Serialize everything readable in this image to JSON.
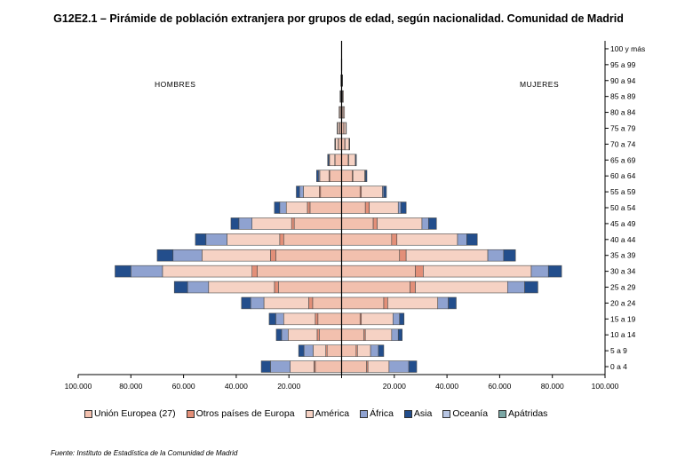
{
  "title": "G12E2.1 – Pirámide de población extranjera por grupos de edad, según nacionalidad. Comunidad de Madrid",
  "labels": {
    "men": "HOMBRES",
    "women": "MUJERES"
  },
  "source": "Fuente: Instituto de Estadística de la Comunidad de Madrid",
  "colors": {
    "Unión Europea (27)": "#f2c0ae",
    "Otros países de Europa": "#e38f78",
    "América": "#f6d2c4",
    "África": "#8fa2d0",
    "Asia": "#234e8c",
    "Oceanía": "#b7c5e3",
    "Apátridas": "#7ba7a5"
  },
  "legend": [
    "Unión Europea (27)",
    "Otros países de Europa",
    "América",
    "África",
    "Asia",
    "Oceanía",
    "Apátridas"
  ],
  "chart_data": {
    "type": "bar",
    "orientation": "horizontal-population-pyramid",
    "categories": [
      "0 a 4",
      "5 a 9",
      "10 a 14",
      "15 a 19",
      "20 a 24",
      "25 a 29",
      "30 a 34",
      "35 a 39",
      "40 a 44",
      "45 a 49",
      "50 a 54",
      "55 a 59",
      "60 a 64",
      "65 a 69",
      "70 a 74",
      "75 a 79",
      "80 a 84",
      "85 a 89",
      "90 a 94",
      "95 a 99",
      "100 y más"
    ],
    "xlim": [
      -100000,
      100000
    ],
    "x_ticks": [
      -100000,
      -80000,
      -60000,
      -40000,
      -20000,
      0,
      20000,
      40000,
      60000,
      80000,
      100000
    ],
    "x_tick_labels": [
      "100.000",
      "80.000",
      "60.000",
      "40.000",
      "20.000",
      "",
      "20.000",
      "40.000",
      "60.000",
      "80.000",
      "100.000"
    ],
    "men": {
      "series": [
        {
          "name": "Unión Europea (27)",
          "values": [
            10000,
            5500,
            8500,
            9000,
            11000,
            24000,
            32000,
            25000,
            22000,
            18000,
            12000,
            8000,
            4500,
            2500,
            1200,
            700,
            500,
            300,
            200,
            100,
            50
          ]
        },
        {
          "name": "Otros países de Europa",
          "values": [
            500,
            500,
            800,
            1000,
            1500,
            1500,
            2000,
            2000,
            1500,
            1000,
            1000,
            500,
            300,
            100,
            100,
            100,
            100,
            100,
            0,
            0,
            0
          ]
        },
        {
          "name": "América",
          "values": [
            9000,
            4800,
            11000,
            12000,
            17000,
            25000,
            34000,
            26000,
            20000,
            15000,
            8000,
            6000,
            3500,
            2000,
            1000,
            700,
            400,
            200,
            100,
            0,
            0
          ]
        },
        {
          "name": "África",
          "values": [
            7500,
            3500,
            2500,
            3000,
            5000,
            8000,
            12000,
            11000,
            8000,
            5000,
            2500,
            1500,
            500,
            300,
            100,
            100,
            0,
            0,
            0,
            0,
            0
          ]
        },
        {
          "name": "Asia",
          "values": [
            3500,
            2000,
            2000,
            2500,
            3500,
            5000,
            6000,
            6000,
            4000,
            3000,
            2000,
            1200,
            700,
            400,
            200,
            100,
            0,
            0,
            0,
            0,
            0
          ]
        },
        {
          "name": "Oceanía",
          "values": [
            0,
            0,
            0,
            0,
            0,
            0,
            0,
            0,
            0,
            0,
            0,
            0,
            0,
            0,
            0,
            0,
            0,
            0,
            0,
            0,
            0
          ]
        },
        {
          "name": "Apátridas",
          "values": [
            0,
            0,
            0,
            0,
            0,
            0,
            0,
            0,
            0,
            0,
            0,
            0,
            0,
            0,
            0,
            0,
            0,
            0,
            0,
            0,
            0
          ]
        }
      ]
    },
    "women": {
      "series": [
        {
          "name": "Unión Europea (27)",
          "values": [
            9500,
            5500,
            8500,
            7000,
            16000,
            26000,
            28000,
            22000,
            19000,
            12000,
            9000,
            7000,
            4000,
            2500,
            1200,
            800,
            500,
            300,
            200,
            100,
            50
          ]
        },
        {
          "name": "Otros países de Europa",
          "values": [
            500,
            500,
            500,
            500,
            1500,
            2000,
            3000,
            2500,
            2000,
            1500,
            1500,
            500,
            300,
            200,
            100,
            100,
            100,
            100,
            0,
            0,
            0
          ]
        },
        {
          "name": "América",
          "values": [
            8000,
            5000,
            10000,
            12000,
            19000,
            35000,
            41000,
            31000,
            23000,
            17000,
            11000,
            8000,
            4500,
            2500,
            1500,
            800,
            500,
            300,
            200,
            0,
            0
          ]
        },
        {
          "name": "África",
          "values": [
            7500,
            3000,
            2500,
            2500,
            4000,
            6500,
            6500,
            6000,
            3500,
            2500,
            1000,
            500,
            300,
            100,
            100,
            0,
            0,
            0,
            0,
            0,
            0
          ]
        },
        {
          "name": "Asia",
          "values": [
            3000,
            2000,
            1500,
            1700,
            3000,
            5000,
            5000,
            4500,
            4000,
            3000,
            2000,
            1000,
            500,
            300,
            200,
            100,
            0,
            0,
            0,
            0,
            0
          ]
        },
        {
          "name": "Oceanía",
          "values": [
            0,
            0,
            0,
            0,
            0,
            0,
            0,
            0,
            0,
            0,
            0,
            0,
            0,
            0,
            0,
            0,
            0,
            0,
            0,
            0,
            0
          ]
        },
        {
          "name": "Apátridas",
          "values": [
            0,
            0,
            0,
            0,
            0,
            0,
            0,
            0,
            0,
            0,
            0,
            0,
            0,
            0,
            0,
            0,
            0,
            0,
            0,
            0,
            0
          ]
        }
      ]
    }
  }
}
